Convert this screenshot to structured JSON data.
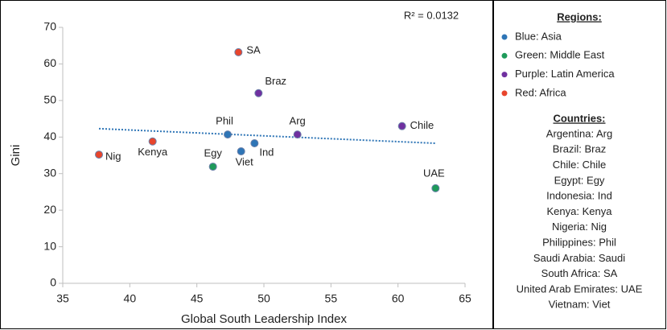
{
  "chart_data": {
    "type": "scatter",
    "annotation": "R² = 0.0132",
    "x_label": "Global South Leadership Index",
    "y_label": "Gini",
    "xlim": [
      35,
      65
    ],
    "xticks": [
      35,
      40,
      45,
      50,
      55,
      60,
      65
    ],
    "ylim": [
      0,
      70
    ],
    "yticks": [
      0,
      10,
      20,
      30,
      40,
      50,
      60,
      70
    ],
    "trendline": {
      "x": [
        37.7,
        62.8
      ],
      "y": [
        42.3,
        38.3
      ],
      "color": "#2e75b6"
    },
    "legend_title": "Regions:",
    "series": [
      {
        "name": "Blue: Asia",
        "color": "#2e75b6",
        "labels": [
          "Phil",
          "Viet",
          "Ind"
        ],
        "x": [
          47.3,
          48.3,
          49.3
        ],
        "y": [
          40.7,
          36.1,
          38.3
        ]
      },
      {
        "name": "Green: Middle East",
        "color": "#1e9a5a",
        "labels": [
          "Egy",
          "UAE"
        ],
        "x": [
          46.2,
          62.8
        ],
        "y": [
          31.9,
          26
        ]
      },
      {
        "name": "Purple: Latin America",
        "color": "#7030a0",
        "labels": [
          "Braz",
          "Arg",
          "Chile"
        ],
        "x": [
          49.6,
          52.5,
          60.3
        ],
        "y": [
          52,
          40.7,
          43
        ]
      },
      {
        "name": "Red: Africa",
        "color": "#e8452c",
        "labels": [
          "SA",
          "Nig",
          "Kenya"
        ],
        "x": [
          48.1,
          37.7,
          41.7
        ],
        "y": [
          63.2,
          35.2,
          38.8
        ]
      }
    ],
    "countries_title": "Countries:",
    "countries": [
      "Argentina: Arg",
      "Brazil: Braz",
      "Chile: Chile",
      "Egypt: Egy",
      "Indonesia: Ind",
      "Kenya: Kenya",
      "Nigeria: Nig",
      "Philippines: Phil",
      "Saudi Arabia: Saudi",
      "South Africa: SA",
      "United Arab Emirates: UAE",
      "Vietnam: Viet"
    ]
  }
}
